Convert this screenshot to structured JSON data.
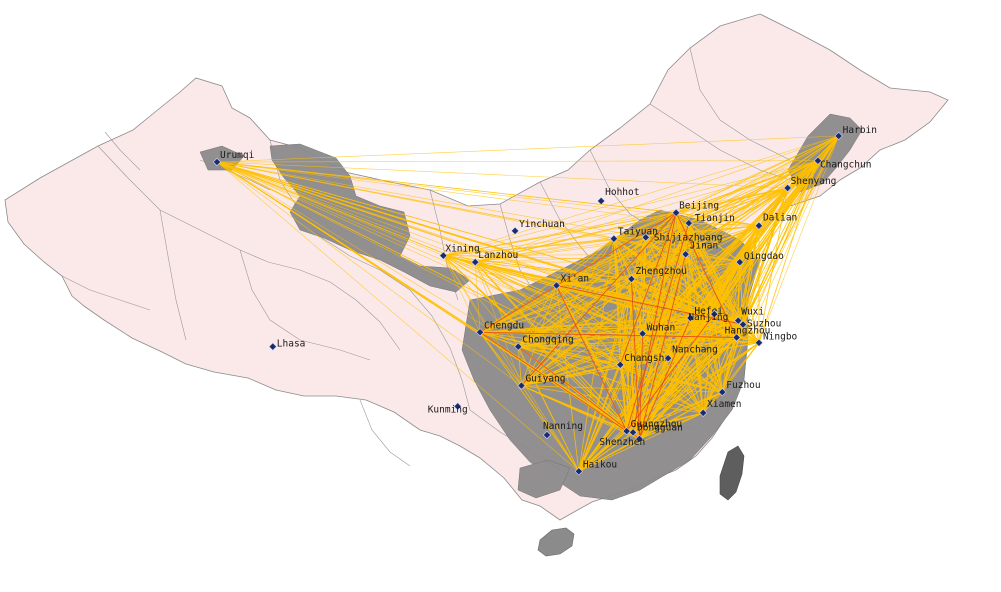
{
  "colors": {
    "background": "#ffffff",
    "province_fill": "#fbe9ea",
    "province_stroke": "#8a8a8a",
    "highlight_fill": "#8c8b8c",
    "taiwan_fill": "#5f5e5f",
    "route_primary": "#ffc000",
    "route_secondary": "#e03a1e",
    "city_marker": "#1b2a6b"
  },
  "cities": [
    {
      "id": "harbin",
      "label": "Harbin",
      "lon": 126.6,
      "lat": 45.8
    },
    {
      "id": "changchun",
      "label": "Changchun",
      "lon": 125.3,
      "lat": 43.9
    },
    {
      "id": "shenyang",
      "label": "Shenyang",
      "lon": 123.4,
      "lat": 41.8
    },
    {
      "id": "dalian",
      "label": "Dalian",
      "lon": 121.6,
      "lat": 38.9
    },
    {
      "id": "beijing",
      "label": "Beijing",
      "lon": 116.4,
      "lat": 39.9
    },
    {
      "id": "tianjin",
      "label": "Tianjin",
      "lon": 117.2,
      "lat": 39.1
    },
    {
      "id": "hohhot",
      "label": "Hohhot",
      "lon": 111.7,
      "lat": 40.8
    },
    {
      "id": "taiyuan",
      "label": "Taiyuan",
      "lon": 112.5,
      "lat": 37.9
    },
    {
      "id": "shijiazhuang",
      "label": "Shijiazhuang",
      "lon": 114.5,
      "lat": 38.0
    },
    {
      "id": "jinan",
      "label": "Jinan",
      "lon": 117.0,
      "lat": 36.7
    },
    {
      "id": "qingdao",
      "label": "Qingdao",
      "lon": 120.4,
      "lat": 36.1
    },
    {
      "id": "zhengzhou",
      "label": "Zhengzhou",
      "lon": 113.6,
      "lat": 34.8
    },
    {
      "id": "xian",
      "label": "Xi'an",
      "lon": 108.9,
      "lat": 34.3
    },
    {
      "id": "yinchuan",
      "label": "Yinchuan",
      "lon": 106.3,
      "lat": 38.5
    },
    {
      "id": "lanzhou",
      "label": "Lanzhou",
      "lon": 103.8,
      "lat": 36.1
    },
    {
      "id": "xining",
      "label": "Xining",
      "lon": 101.8,
      "lat": 36.6
    },
    {
      "id": "urumqi",
      "label": "Urumqi",
      "lon": 87.6,
      "lat": 43.8
    },
    {
      "id": "lhasa",
      "label": "Lhasa",
      "lon": 91.1,
      "lat": 29.6
    },
    {
      "id": "chengdu",
      "label": "Chengdu",
      "lon": 104.1,
      "lat": 30.7
    },
    {
      "id": "chongqing",
      "label": "Chongqing",
      "lon": 106.5,
      "lat": 29.6
    },
    {
      "id": "guiyang",
      "label": "Guiyang",
      "lon": 106.7,
      "lat": 26.6
    },
    {
      "id": "kunming",
      "label": "Kunming",
      "lon": 102.7,
      "lat": 25.0
    },
    {
      "id": "nanning",
      "label": "Nanning",
      "lon": 108.3,
      "lat": 22.8
    },
    {
      "id": "wuhan",
      "label": "Wuhan",
      "lon": 114.3,
      "lat": 30.6
    },
    {
      "id": "changsha",
      "label": "Changsha",
      "lon": 112.9,
      "lat": 28.2
    },
    {
      "id": "nanchang",
      "label": "Nanchang",
      "lon": 115.9,
      "lat": 28.7
    },
    {
      "id": "hefei",
      "label": "Hefei",
      "lon": 117.3,
      "lat": 31.8
    },
    {
      "id": "nanjing",
      "label": "Nanjing",
      "lon": 118.8,
      "lat": 32.1
    },
    {
      "id": "wuxi",
      "label": "Wuxi",
      "lon": 120.3,
      "lat": 31.6
    },
    {
      "id": "suzhou",
      "label": "Suzhou",
      "lon": 120.6,
      "lat": 31.3
    },
    {
      "id": "hangzhou",
      "label": "Hangzhou",
      "lon": 120.2,
      "lat": 30.3
    },
    {
      "id": "ningbo",
      "label": "Ningbo",
      "lon": 121.6,
      "lat": 29.9
    },
    {
      "id": "fuzhou",
      "label": "Fuzhou",
      "lon": 119.3,
      "lat": 26.1
    },
    {
      "id": "xiamen",
      "label": "Xiamen",
      "lon": 118.1,
      "lat": 24.5
    },
    {
      "id": "guangzhou",
      "label": "Guangzhou",
      "lon": 113.3,
      "lat": 23.1
    },
    {
      "id": "dongguan",
      "label": "Dongguan",
      "lon": 113.7,
      "lat": 23.0
    },
    {
      "id": "shenzhen",
      "label": "Shenzhen",
      "lon": 114.1,
      "lat": 22.5
    },
    {
      "id": "haikou",
      "label": "Haikou",
      "lon": 110.3,
      "lat": 20.0
    }
  ],
  "label_texts": {
    "harbin": "Harbin",
    "changchun": "Changchun",
    "shenyang": "Shenyang",
    "dalian": "Dalian",
    "beijing": "Beijing",
    "tianjin": "Tianjin",
    "hohhot": "Hohhot",
    "taiyuan": "Taiyuan",
    "shijiazhuang": "Shijiazhuang",
    "jinan": "Jinan",
    "qingdao": "Qingdao",
    "zhengzhou": "Zhengzhou",
    "xian": "Xi'an",
    "yinchuan": "Yinchuan",
    "lanzhou": "Lanzhou",
    "xining": "Xining",
    "urumqi": "Urumqi",
    "lhasa": "Lhasa",
    "chengdu": "Chengdu",
    "chongqing": "Chongqing",
    "guiyang": "Guiyang",
    "kunming": "Kunming",
    "nanning": "Nanning",
    "wuhan": "Wuhan",
    "changsha": "Changsha",
    "nanchang": "Nanchang",
    "hefei": "Hefei",
    "nanjing": "Nanjing",
    "wuxi": "Wuxi",
    "suzhou": "Suzhou",
    "hangzhou": "Hangzhou",
    "ningbo": "Ningbo",
    "fuzhou": "Fuzhou",
    "xiamen": "Xiamen",
    "dongguan": "Dongguan",
    "shenzhen": "Shenzhen",
    "haikou": "Haikou"
  },
  "hubs": [
    "beijing",
    "guangzhou",
    "shenzhen",
    "dongguan",
    "wuhan",
    "zhengzhou",
    "hangzhou",
    "nanjing",
    "suzhou",
    "chengdu",
    "changsha",
    "shanghai_area"
  ],
  "secondary_routes": [
    [
      "chengdu",
      "guangzhou"
    ],
    [
      "chengdu",
      "beijing"
    ],
    [
      "xian",
      "guangzhou"
    ],
    [
      "beijing",
      "dongguan"
    ],
    [
      "wuhan",
      "shenzhen"
    ],
    [
      "zhengzhou",
      "shenzhen"
    ],
    [
      "beijing",
      "hangzhou"
    ],
    [
      "chongqing",
      "shenzhen"
    ],
    [
      "changsha",
      "beijing"
    ],
    [
      "xian",
      "suzhou"
    ],
    [
      "chengdu",
      "hangzhou"
    ],
    [
      "guangzhou",
      "nanjing"
    ],
    [
      "jinan",
      "shenzhen"
    ],
    [
      "tianjin",
      "guangzhou"
    ],
    [
      "hefei",
      "shenzhen"
    ],
    [
      "guiyang",
      "beijing"
    ]
  ]
}
